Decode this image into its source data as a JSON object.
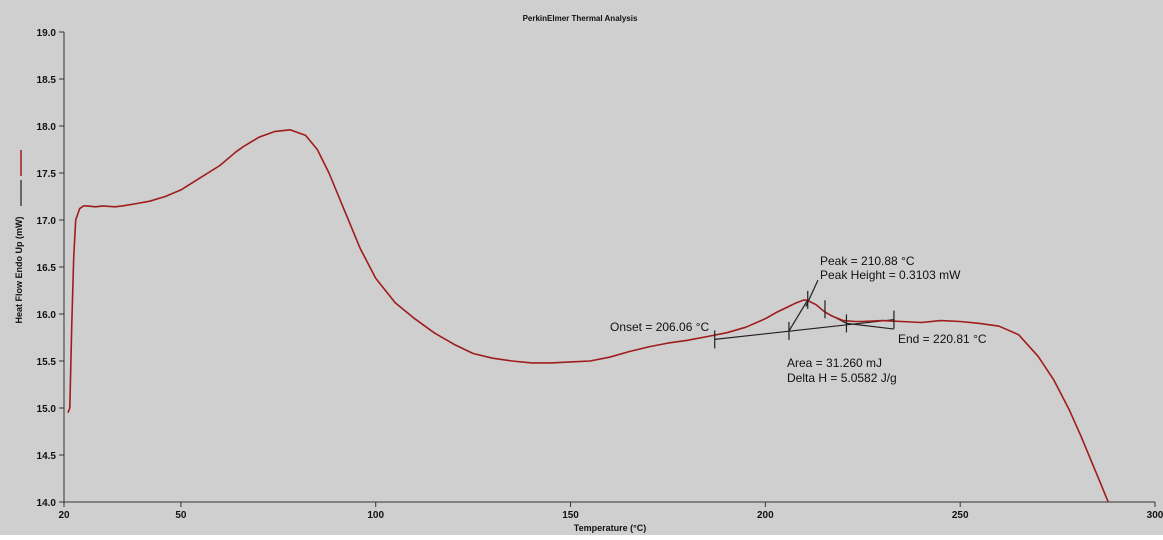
{
  "chart_data": {
    "type": "line",
    "title": "PerkinElmer Thermal Analysis",
    "xlabel": "Temperature (°C)",
    "ylabel": "Heat Flow Endo Up (mW)",
    "xlim": [
      20,
      300
    ],
    "ylim": [
      14.0,
      19.0
    ],
    "x_ticks": [
      20,
      50,
      100,
      150,
      200,
      250,
      300
    ],
    "y_ticks": [
      "14.0",
      "14.5",
      "15.0",
      "15.5",
      "16.0",
      "16.5",
      "17.0",
      "17.5",
      "18.0",
      "18.5",
      "19.0"
    ],
    "grid": false,
    "colors": {
      "series": "#a01c1c",
      "background": "#cfcfcf",
      "annotation": "#202020"
    },
    "series": [
      {
        "x": [
          21.0,
          21.5,
          22.0,
          22.5,
          23.0,
          24.0,
          25.0,
          26.0,
          28.0,
          30.0,
          33.0,
          35.0,
          38.0,
          42.0,
          46.0,
          50.0,
          55.0,
          60.0,
          64.0,
          66.0,
          70.0,
          74.0,
          78.0,
          82.0,
          85.0,
          88.0,
          92.0,
          96.0,
          100.0,
          105.0,
          110.0,
          115.0,
          120.0,
          125.0,
          130.0,
          135.0,
          140.0,
          145.0,
          150.0,
          155.0,
          160.0,
          165.0,
          170.0,
          175.0,
          180.0,
          185.0,
          190.0,
          195.0,
          200.0,
          203.0,
          206.0,
          208.0,
          210.0,
          211.0,
          213.0,
          215.0,
          217.0,
          220.0,
          223.0,
          225.0,
          230.0,
          235.0,
          240.0,
          245.0,
          250.0,
          255.0,
          260.0,
          265.0,
          270.0,
          274.0,
          278.0,
          281.0,
          284.0,
          286.0,
          288.0
        ],
        "y": [
          14.95,
          15.0,
          15.9,
          16.6,
          17.0,
          17.12,
          17.15,
          17.15,
          17.14,
          17.15,
          17.14,
          17.15,
          17.17,
          17.2,
          17.25,
          17.32,
          17.45,
          17.58,
          17.72,
          17.78,
          17.88,
          17.94,
          17.96,
          17.9,
          17.75,
          17.5,
          17.1,
          16.7,
          16.38,
          16.12,
          15.95,
          15.8,
          15.68,
          15.58,
          15.53,
          15.5,
          15.48,
          15.48,
          15.49,
          15.5,
          15.54,
          15.6,
          15.65,
          15.69,
          15.72,
          15.76,
          15.8,
          15.86,
          15.95,
          16.02,
          16.08,
          16.12,
          16.15,
          16.14,
          16.1,
          16.03,
          15.98,
          15.93,
          15.92,
          15.92,
          15.93,
          15.92,
          15.91,
          15.93,
          15.92,
          15.9,
          15.87,
          15.78,
          15.55,
          15.3,
          14.98,
          14.7,
          14.4,
          14.2,
          14.0
        ]
      }
    ],
    "annotations": {
      "onset": "Onset = 206.06 °C",
      "peak": "Peak = 210.88 °C",
      "peak_height": "Peak Height = 0.3103 mW",
      "end": "End = 220.81 °C",
      "area": "Area = 31.260 mJ",
      "delta_h": "Delta H = 5.0582 J/g"
    },
    "baseline": {
      "x": [
        187.0,
        233.0
      ],
      "y": [
        15.73,
        15.94
      ]
    }
  }
}
